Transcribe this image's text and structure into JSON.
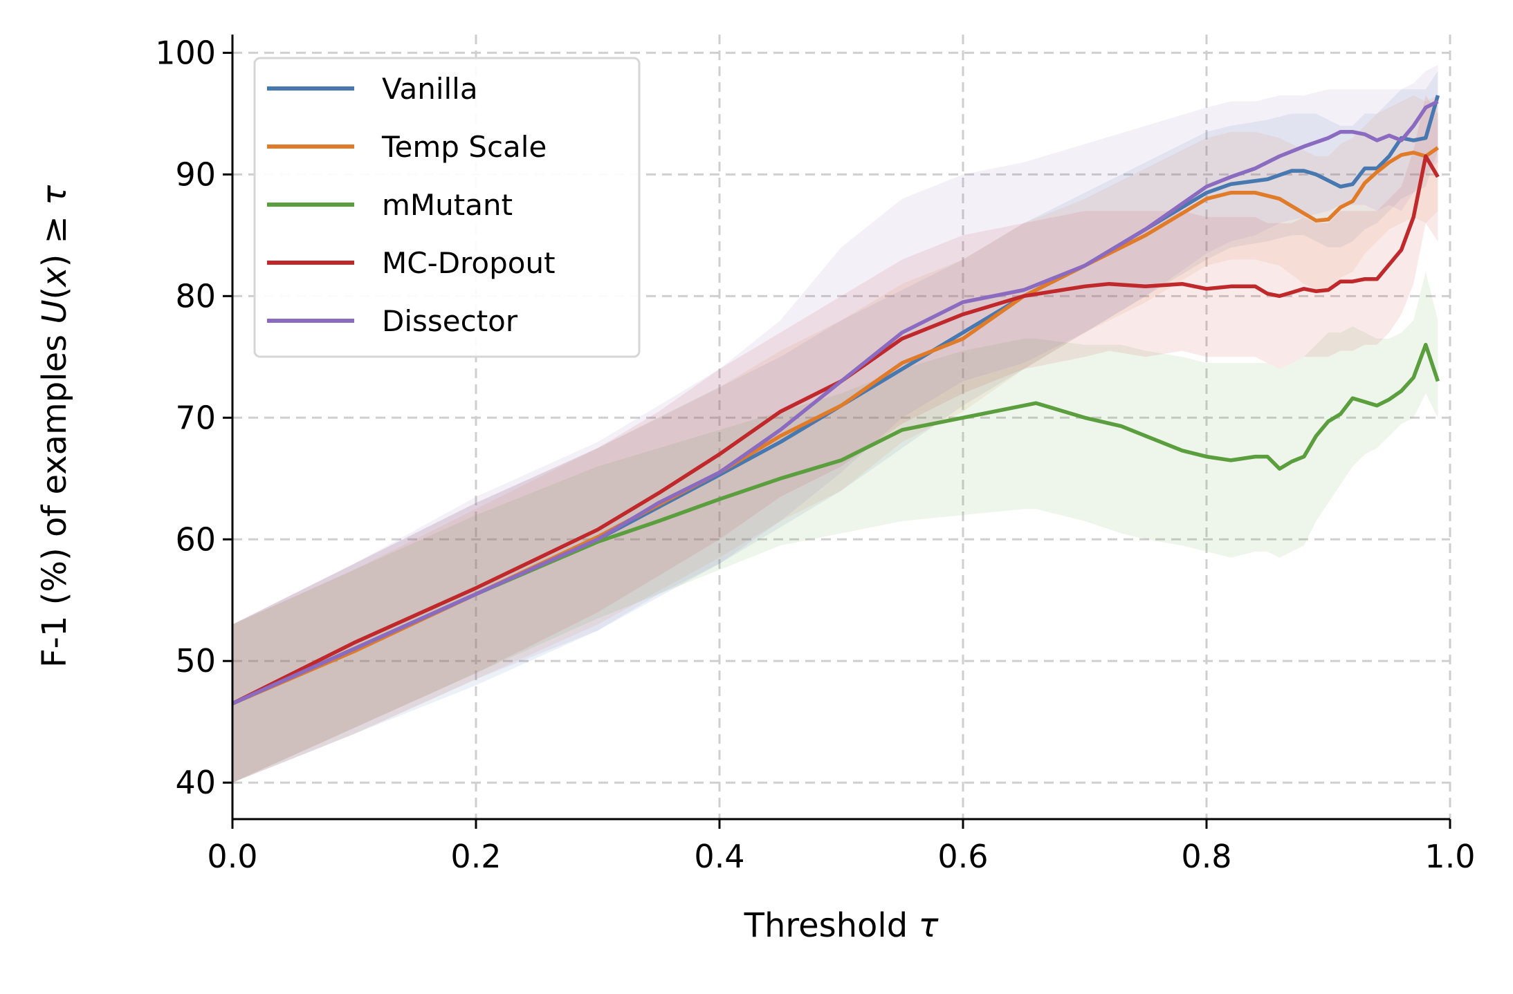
{
  "chart_data": {
    "type": "line",
    "xlabel": "Threshold τ",
    "ylabel": "F-1 (%) of examples U(x) ≥ τ",
    "xlim": [
      0.0,
      1.0
    ],
    "ylim": [
      37,
      101.5
    ],
    "xticks": [
      0.0,
      0.2,
      0.4,
      0.6,
      0.8,
      1.0
    ],
    "xtick_labels": [
      "0.0",
      "0.2",
      "0.4",
      "0.6",
      "0.8",
      "1.0"
    ],
    "yticks": [
      40,
      50,
      60,
      70,
      80,
      90,
      100
    ],
    "ytick_labels": [
      "40",
      "50",
      "60",
      "70",
      "80",
      "90",
      "100"
    ],
    "grid": true,
    "legend_position": "top-left",
    "series": [
      {
        "name": "Vanilla",
        "color": "#4878b0",
        "x": [
          0.0,
          0.1,
          0.2,
          0.3,
          0.4,
          0.45,
          0.5,
          0.55,
          0.6,
          0.65,
          0.7,
          0.75,
          0.8,
          0.82,
          0.85,
          0.87,
          0.88,
          0.89,
          0.9,
          0.91,
          0.92,
          0.93,
          0.94,
          0.95,
          0.96,
          0.97,
          0.98,
          0.99
        ],
        "y": [
          46.5,
          51.0,
          55.5,
          60.0,
          65.3,
          68.0,
          71.0,
          74.0,
          77.0,
          80.0,
          82.5,
          85.5,
          88.5,
          89.2,
          89.6,
          90.3,
          90.3,
          90.0,
          89.5,
          89.0,
          89.2,
          90.5,
          90.5,
          91.5,
          93.0,
          92.8,
          93.0,
          96.5
        ],
        "band_lower": [
          40.0,
          44.0,
          48.0,
          52.5,
          58.0,
          61.0,
          64.0,
          67.5,
          71.0,
          74.0,
          77.0,
          80.0,
          83.0,
          84.0,
          84.5,
          85.0,
          85.0,
          84.5,
          84.0,
          84.0,
          84.5,
          85.5,
          86.0,
          87.0,
          88.0,
          88.5,
          89.0,
          92.0
        ],
        "band_upper": [
          53.0,
          58.0,
          63.0,
          67.5,
          72.5,
          75.0,
          78.0,
          80.5,
          83.0,
          86.0,
          88.5,
          91.0,
          93.5,
          94.0,
          94.5,
          95.0,
          95.0,
          95.0,
          94.5,
          94.0,
          94.0,
          95.0,
          95.0,
          96.0,
          97.0,
          97.0,
          97.0,
          98.5
        ]
      },
      {
        "name": "Temp Scale",
        "color": "#e07b2a",
        "x": [
          0.0,
          0.1,
          0.2,
          0.3,
          0.4,
          0.45,
          0.5,
          0.55,
          0.6,
          0.65,
          0.7,
          0.75,
          0.8,
          0.82,
          0.84,
          0.86,
          0.88,
          0.89,
          0.9,
          0.91,
          0.92,
          0.93,
          0.94,
          0.95,
          0.96,
          0.97,
          0.98,
          0.99
        ],
        "y": [
          46.5,
          50.8,
          55.5,
          60.2,
          65.5,
          68.5,
          71.0,
          74.5,
          76.5,
          80.0,
          82.5,
          85.0,
          88.0,
          88.5,
          88.5,
          88.0,
          86.8,
          86.2,
          86.3,
          87.3,
          87.8,
          89.3,
          90.2,
          91.0,
          91.6,
          91.8,
          91.5,
          92.2
        ],
        "band_lower": [
          40.0,
          44.0,
          48.5,
          53.0,
          58.5,
          61.5,
          64.0,
          68.0,
          70.5,
          74.0,
          77.0,
          79.5,
          82.5,
          83.0,
          83.0,
          82.5,
          81.0,
          80.5,
          80.5,
          81.5,
          82.0,
          83.5,
          84.5,
          85.5,
          86.0,
          86.5,
          86.0,
          87.0
        ],
        "band_upper": [
          53.0,
          57.5,
          62.5,
          67.5,
          72.5,
          75.5,
          78.0,
          81.0,
          83.0,
          86.0,
          88.0,
          90.5,
          93.0,
          93.5,
          93.5,
          93.0,
          92.0,
          91.5,
          91.5,
          92.5,
          93.0,
          94.0,
          95.0,
          95.5,
          96.0,
          96.5,
          96.0,
          96.5
        ]
      },
      {
        "name": "mMutant",
        "color": "#5a9e3e",
        "x": [
          0.0,
          0.1,
          0.2,
          0.3,
          0.35,
          0.4,
          0.45,
          0.5,
          0.55,
          0.6,
          0.65,
          0.66,
          0.7,
          0.73,
          0.75,
          0.78,
          0.8,
          0.82,
          0.84,
          0.85,
          0.86,
          0.87,
          0.88,
          0.89,
          0.9,
          0.91,
          0.92,
          0.93,
          0.94,
          0.95,
          0.96,
          0.97,
          0.98,
          0.99
        ],
        "y": [
          46.5,
          51.0,
          55.5,
          59.8,
          61.5,
          63.3,
          65.0,
          66.5,
          69.0,
          70.0,
          71.0,
          71.2,
          70.0,
          69.3,
          68.5,
          67.3,
          66.8,
          66.5,
          66.8,
          66.8,
          65.8,
          66.4,
          66.8,
          68.5,
          69.7,
          70.3,
          71.6,
          71.3,
          71.0,
          71.5,
          72.2,
          73.3,
          76.0,
          73.0
        ],
        "band_lower": [
          40.0,
          44.5,
          49.0,
          53.5,
          55.5,
          57.5,
          59.5,
          60.5,
          61.5,
          62.0,
          62.5,
          62.5,
          61.5,
          60.5,
          60.0,
          59.5,
          59.0,
          58.5,
          59.0,
          59.0,
          58.5,
          59.0,
          59.5,
          61.5,
          63.0,
          64.5,
          66.0,
          67.0,
          67.5,
          68.5,
          69.5,
          70.0,
          72.0,
          70.0
        ],
        "band_upper": [
          53.0,
          57.5,
          62.0,
          66.0,
          67.5,
          69.0,
          70.5,
          72.0,
          74.0,
          75.5,
          76.5,
          76.5,
          76.0,
          76.0,
          75.5,
          75.0,
          74.5,
          74.5,
          74.5,
          74.5,
          74.0,
          74.5,
          75.0,
          76.0,
          77.0,
          77.0,
          77.5,
          77.0,
          76.5,
          76.5,
          77.0,
          78.0,
          82.0,
          78.0
        ]
      },
      {
        "name": "MC-Dropout",
        "color": "#c0292b",
        "x": [
          0.0,
          0.1,
          0.2,
          0.3,
          0.35,
          0.4,
          0.45,
          0.5,
          0.55,
          0.6,
          0.65,
          0.7,
          0.72,
          0.75,
          0.78,
          0.8,
          0.82,
          0.84,
          0.85,
          0.86,
          0.87,
          0.88,
          0.89,
          0.9,
          0.91,
          0.92,
          0.93,
          0.94,
          0.95,
          0.96,
          0.97,
          0.98,
          0.99
        ],
        "y": [
          46.5,
          51.5,
          56.0,
          60.8,
          63.8,
          67.0,
          70.5,
          73.0,
          76.5,
          78.5,
          80.0,
          80.8,
          81.0,
          80.8,
          81.0,
          80.6,
          80.8,
          80.8,
          80.2,
          80.0,
          80.3,
          80.6,
          80.4,
          80.5,
          81.2,
          81.2,
          81.4,
          81.4,
          82.6,
          83.8,
          86.5,
          91.5,
          89.8
        ],
        "band_lower": [
          40.0,
          44.5,
          49.0,
          54.0,
          57.0,
          60.0,
          63.5,
          66.0,
          69.5,
          72.0,
          74.0,
          75.0,
          75.5,
          75.0,
          75.5,
          75.0,
          75.0,
          75.0,
          74.5,
          74.0,
          74.5,
          75.0,
          75.0,
          75.0,
          75.5,
          75.5,
          76.0,
          76.0,
          77.0,
          78.5,
          81.0,
          86.0,
          84.5
        ],
        "band_upper": [
          53.0,
          58.0,
          63.0,
          67.5,
          70.5,
          74.0,
          77.0,
          80.0,
          83.0,
          85.0,
          86.0,
          87.0,
          87.0,
          87.0,
          87.0,
          86.5,
          86.5,
          86.5,
          86.0,
          86.0,
          86.0,
          86.5,
          86.0,
          86.0,
          87.0,
          87.0,
          87.0,
          87.0,
          88.0,
          89.0,
          92.0,
          96.5,
          95.0
        ]
      },
      {
        "name": "Dissector",
        "color": "#8b6bbf",
        "x": [
          0.0,
          0.1,
          0.2,
          0.3,
          0.35,
          0.4,
          0.45,
          0.5,
          0.55,
          0.6,
          0.65,
          0.7,
          0.75,
          0.8,
          0.82,
          0.84,
          0.86,
          0.88,
          0.9,
          0.91,
          0.92,
          0.93,
          0.94,
          0.95,
          0.96,
          0.97,
          0.98,
          0.99
        ],
        "y": [
          46.5,
          51.0,
          55.5,
          60.0,
          63.0,
          65.5,
          69.0,
          73.0,
          77.0,
          79.5,
          80.5,
          82.5,
          85.5,
          89.0,
          89.8,
          90.5,
          91.5,
          92.3,
          93.0,
          93.5,
          93.5,
          93.3,
          92.8,
          93.2,
          92.8,
          94.0,
          95.5,
          96.0
        ],
        "band_lower": [
          40.0,
          44.0,
          48.5,
          52.5,
          55.5,
          58.0,
          61.5,
          65.5,
          70.0,
          73.0,
          74.5,
          77.0,
          80.0,
          83.5,
          84.5,
          85.0,
          86.0,
          86.5,
          87.0,
          87.5,
          87.5,
          87.5,
          87.0,
          87.5,
          87.0,
          88.5,
          90.0,
          91.0
        ],
        "band_upper": [
          53.0,
          58.0,
          63.5,
          68.0,
          71.0,
          74.0,
          78.0,
          84.0,
          88.0,
          90.0,
          91.0,
          92.5,
          94.0,
          95.5,
          96.0,
          96.0,
          96.5,
          96.5,
          97.0,
          97.0,
          97.0,
          97.0,
          97.0,
          97.0,
          97.0,
          97.5,
          98.5,
          99.0
        ]
      }
    ]
  }
}
